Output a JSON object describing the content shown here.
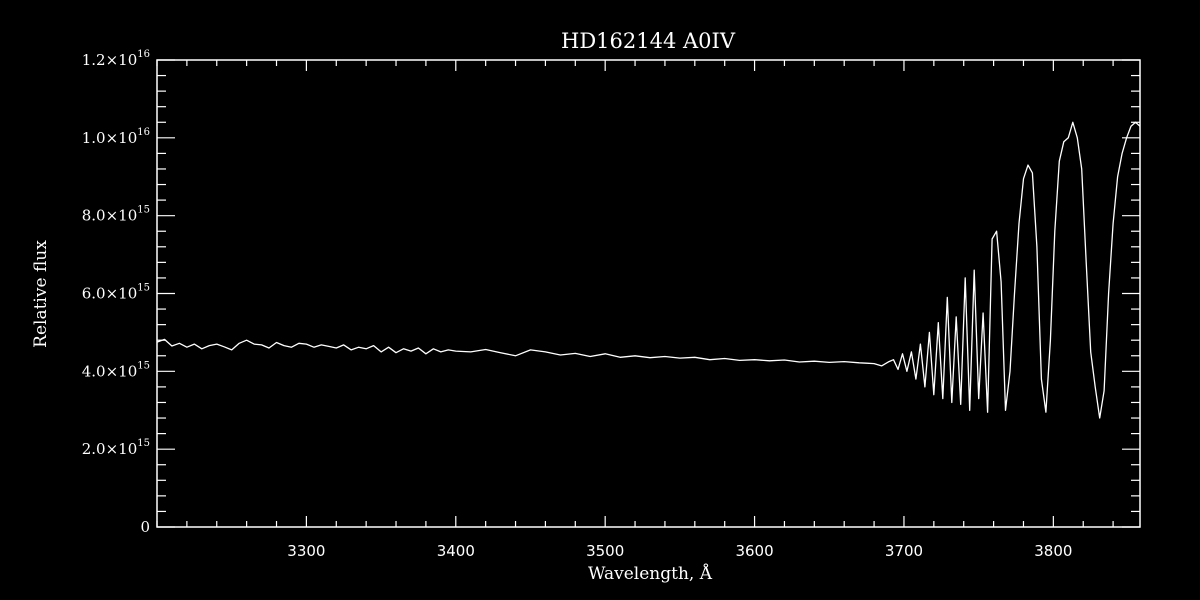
{
  "chart_data": {
    "type": "line",
    "title": "HD162144   A0IV",
    "xlabel": "Wavelength, Å",
    "ylabel": "Relative flux",
    "xlim": [
      3200,
      3858
    ],
    "ylim": [
      0,
      1.2e+16
    ],
    "grid": false,
    "background": "#000000",
    "line_color": "#ffffff",
    "x_ticks": [
      {
        "value": 3300,
        "label": "3300"
      },
      {
        "value": 3400,
        "label": "3400"
      },
      {
        "value": 3500,
        "label": "3500"
      },
      {
        "value": 3600,
        "label": "3600"
      },
      {
        "value": 3700,
        "label": "3700"
      },
      {
        "value": 3800,
        "label": "3800"
      }
    ],
    "x_minor_step": 20,
    "y_ticks": [
      {
        "value": 0,
        "mantissa": "0",
        "exponent": ""
      },
      {
        "value": 2000000000000000.0,
        "mantissa": "2.0×10",
        "exponent": "15"
      },
      {
        "value": 4000000000000000.0,
        "mantissa": "4.0×10",
        "exponent": "15"
      },
      {
        "value": 6000000000000000.0,
        "mantissa": "6.0×10",
        "exponent": "15"
      },
      {
        "value": 8000000000000000.0,
        "mantissa": "8.0×10",
        "exponent": "15"
      },
      {
        "value": 1e+16,
        "mantissa": "1.0×10",
        "exponent": "16"
      },
      {
        "value": 1.2e+16,
        "mantissa": "1.2×10",
        "exponent": "16"
      }
    ],
    "y_minor_step": 400000000000000.0,
    "series": [
      {
        "x": [
          3200,
          3205,
          3210,
          3215,
          3220,
          3225,
          3230,
          3235,
          3240,
          3245,
          3250,
          3255,
          3260,
          3265,
          3270,
          3275,
          3280,
          3285,
          3290,
          3295,
          3300,
          3305,
          3310,
          3315,
          3320,
          3325,
          3330,
          3335,
          3340,
          3345,
          3350,
          3355,
          3360,
          3365,
          3370,
          3375,
          3380,
          3385,
          3390,
          3395,
          3400,
          3410,
          3420,
          3430,
          3440,
          3450,
          3460,
          3470,
          3480,
          3490,
          3500,
          3510,
          3520,
          3530,
          3540,
          3550,
          3560,
          3570,
          3580,
          3590,
          3600,
          3610,
          3620,
          3630,
          3640,
          3650,
          3660,
          3670,
          3675,
          3680,
          3685,
          3690,
          3693,
          3696,
          3699,
          3702,
          3705,
          3708,
          3711,
          3714,
          3717,
          3720,
          3723,
          3726,
          3729,
          3732,
          3735,
          3738,
          3741,
          3744,
          3747,
          3750,
          3753,
          3756,
          3759,
          3762,
          3765,
          3768,
          3771,
          3774,
          3777,
          3780,
          3783,
          3786,
          3789,
          3792,
          3795,
          3798,
          3801,
          3804,
          3807,
          3810,
          3813,
          3816,
          3819,
          3822,
          3825,
          3828,
          3831,
          3834,
          3837,
          3840,
          3843,
          3846,
          3849,
          3852,
          3855,
          3858
        ],
        "y": [
          4750000000000000.0,
          4820000000000000.0,
          4650000000000000.0,
          4720000000000000.0,
          4620000000000000.0,
          4700000000000000.0,
          4580000000000000.0,
          4660000000000000.0,
          4700000000000000.0,
          4630000000000000.0,
          4550000000000000.0,
          4720000000000000.0,
          4800000000000000.0,
          4700000000000000.0,
          4680000000000000.0,
          4600000000000000.0,
          4740000000000000.0,
          4660000000000000.0,
          4620000000000000.0,
          4720000000000000.0,
          4700000000000000.0,
          4620000000000000.0,
          4680000000000000.0,
          4640000000000000.0,
          4600000000000000.0,
          4680000000000000.0,
          4550000000000000.0,
          4620000000000000.0,
          4580000000000000.0,
          4660000000000000.0,
          4500000000000000.0,
          4620000000000000.0,
          4480000000000000.0,
          4580000000000000.0,
          4520000000000000.0,
          4600000000000000.0,
          4450000000000000.0,
          4580000000000000.0,
          4500000000000000.0,
          4550000000000000.0,
          4520000000000000.0,
          4500000000000000.0,
          4560000000000000.0,
          4480000000000000.0,
          4400000000000000.0,
          4550000000000000.0,
          4500000000000000.0,
          4420000000000000.0,
          4460000000000000.0,
          4380000000000000.0,
          4450000000000000.0,
          4360000000000000.0,
          4400000000000000.0,
          4350000000000000.0,
          4380000000000000.0,
          4340000000000000.0,
          4360000000000000.0,
          4300000000000000.0,
          4330000000000000.0,
          4280000000000000.0,
          4300000000000000.0,
          4270000000000000.0,
          4290000000000000.0,
          4240000000000000.0,
          4260000000000000.0,
          4230000000000000.0,
          4250000000000000.0,
          4220000000000000.0,
          4210000000000000.0,
          4200000000000000.0,
          4140000000000000.0,
          4250000000000000.0,
          4300000000000000.0,
          4050000000000000.0,
          4450000000000000.0,
          4000000000000000.0,
          4500000000000000.0,
          3800000000000000.0,
          4700000000000000.0,
          3600000000000000.0,
          5000000000000000.0,
          3400000000000000.0,
          5250000000000000.0,
          3300000000000000.0,
          5900000000000000.0,
          3200000000000000.0,
          5400000000000000.0,
          3150000000000000.0,
          6400000000000000.0,
          3000000000000000.0,
          6600000000000000.0,
          3300000000000000.0,
          5500000000000000.0,
          2950000000000000.0,
          7400000000000000.0,
          7600000000000000.0,
          6300000000000000.0,
          3000000000000000.0,
          4000000000000000.0,
          6000000000000000.0,
          7800000000000000.0,
          8950000000000000.0,
          9300000000000000.0,
          9100000000000000.0,
          7200000000000000.0,
          3800000000000000.0,
          2950000000000000.0,
          4800000000000000.0,
          7600000000000000.0,
          9400000000000000.0,
          9900000000000000.0,
          1e+16,
          1.04e+16,
          1e+16,
          9200000000000000.0,
          6800000000000000.0,
          4500000000000000.0,
          3600000000000000.0,
          2800000000000000.0,
          3500000000000000.0,
          6000000000000000.0,
          7800000000000000.0,
          9000000000000000.0,
          9600000000000000.0,
          1e+16,
          1.03e+16,
          1.04e+16,
          1.03e+16
        ]
      }
    ]
  }
}
